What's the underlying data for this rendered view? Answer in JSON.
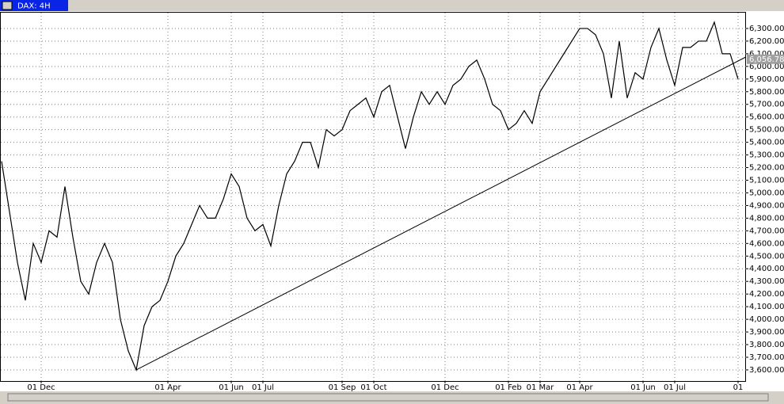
{
  "chart_data": {
    "type": "line",
    "title": "DAX: 4H",
    "categories": [
      null,
      null,
      null,
      null,
      null,
      "01 Dec",
      null,
      null,
      null,
      null,
      null,
      null,
      null,
      null,
      null,
      null,
      null,
      null,
      null,
      null,
      null,
      "01 Apr",
      null,
      null,
      null,
      null,
      null,
      null,
      null,
      "01 Jun",
      null,
      null,
      null,
      "01 Jul",
      null,
      null,
      null,
      null,
      null,
      null,
      null,
      null,
      null,
      "01 Sep",
      null,
      null,
      null,
      "01 Oct",
      null,
      null,
      null,
      null,
      null,
      null,
      null,
      null,
      "01 Dec",
      null,
      null,
      null,
      null,
      null,
      null,
      null,
      "01 Feb",
      null,
      null,
      null,
      "01 Mar",
      null,
      null,
      null,
      null,
      "01 Apr",
      null,
      null,
      null,
      null,
      null,
      null,
      null,
      "01 Jun",
      null,
      null,
      null,
      "01 Jul",
      null,
      null,
      null,
      null,
      null,
      null,
      null,
      "01"
    ],
    "series": [
      {
        "name": "DAX",
        "color": "#000000",
        "values": [
          5250,
          4850,
          4450,
          4150,
          4600,
          4450,
          4700,
          4650,
          5050,
          4650,
          4300,
          4200,
          4450,
          4600,
          4450,
          4000,
          3750,
          3600,
          3950,
          4100,
          4150,
          4300,
          4500,
          4600,
          4750,
          4900,
          4800,
          4800,
          4950,
          5150,
          5050,
          4800,
          4700,
          4750,
          4580,
          4900,
          5150,
          5250,
          5400,
          5400,
          5200,
          5500,
          5450,
          5500,
          5650,
          5700,
          5750,
          5600,
          5800,
          5850,
          5600,
          5350,
          5600,
          5800,
          5700,
          5800,
          5700,
          5850,
          5900,
          6000,
          6050,
          5900,
          5700,
          5650,
          5500,
          5550,
          5650,
          5550,
          5800,
          5900,
          6000,
          6100,
          6200,
          6300,
          6300,
          6250,
          6100,
          5750,
          6200,
          5750,
          5950,
          5900,
          6150,
          6300,
          6050,
          5850,
          6150,
          6150,
          6200,
          6200,
          6350,
          6100,
          6100,
          5900
        ]
      }
    ],
    "last_price": {
      "value": 6056.78,
      "label": "6,056.78"
    },
    "trendline": {
      "x": [
        17,
        94
      ],
      "values": [
        3600,
        6075
      ]
    },
    "ylim": [
      3512,
      6425
    ],
    "yticks": [
      {
        "value": 3600,
        "label": "3,600.00"
      },
      {
        "value": 3700,
        "label": "3,700.00"
      },
      {
        "value": 3800,
        "label": "3,800.00"
      },
      {
        "value": 3900,
        "label": "3,900.00"
      },
      {
        "value": 4000,
        "label": "4,000.00"
      },
      {
        "value": 4100,
        "label": "4,100.00"
      },
      {
        "value": 4200,
        "label": "4,200.00"
      },
      {
        "value": 4300,
        "label": "4,300.00"
      },
      {
        "value": 4400,
        "label": "4,400.00"
      },
      {
        "value": 4500,
        "label": "4,500.00"
      },
      {
        "value": 4600,
        "label": "4,600.00"
      },
      {
        "value": 4700,
        "label": "4,700.00"
      },
      {
        "value": 4800,
        "label": "4,800.00"
      },
      {
        "value": 4900,
        "label": "4,900.00"
      },
      {
        "value": 5000,
        "label": "5,000.00"
      },
      {
        "value": 5100,
        "label": "5,100.00"
      },
      {
        "value": 5200,
        "label": "5,200.00"
      },
      {
        "value": 5300,
        "label": "5,300.00"
      },
      {
        "value": 5400,
        "label": "5,400.00"
      },
      {
        "value": 5500,
        "label": "5,500.00"
      },
      {
        "value": 5600,
        "label": "5,600.00"
      },
      {
        "value": 5700,
        "label": "5,700.00"
      },
      {
        "value": 5800,
        "label": "5,800.00"
      },
      {
        "value": 5900,
        "label": "5,900.00"
      },
      {
        "value": 6000,
        "label": "6,000.00"
      },
      {
        "value": 6100,
        "label": "6,100.00"
      },
      {
        "value": 6200,
        "label": "6,200.00"
      },
      {
        "value": 6300,
        "label": "6,300.00"
      }
    ],
    "grid": true
  }
}
